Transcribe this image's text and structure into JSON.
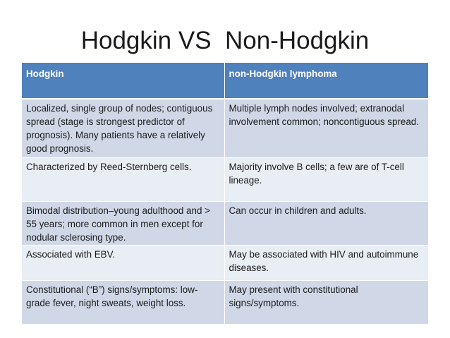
{
  "title": "Hodgkin VS  Non-Hodgkin",
  "table": {
    "headers": [
      "Hodgkin",
      "non-Hodgkin lymphoma"
    ],
    "rows": [
      [
        "Localized, single group of nodes; contiguous spread (stage is strongest predictor of prognosis). Many patients have a relatively good prognosis.",
        "Multiple lymph nodes involved; extranodal involvement common; noncontiguous spread."
      ],
      [
        "Characterized by Reed-Sternberg cells.",
        "Majority involve B cells; a few are of T-cell lineage."
      ],
      [
        "Bimodal distribution–young adulthood and > 55 years; more common in men except for nodular sclerosing type.",
        "Can occur in children and adults."
      ],
      [
        "Associated with EBV.",
        "May be associated with HIV and autoimmune diseases."
      ],
      [
        "Constitutional (“B”) signs/symptoms: low-grade fever, night sweats, weight loss.",
        "May present with constitutional signs/symptoms."
      ]
    ]
  },
  "colors": {
    "header_bg": "#4f81bd",
    "row_odd_bg": "#d0d8e8",
    "row_even_bg": "#e9edf4"
  }
}
